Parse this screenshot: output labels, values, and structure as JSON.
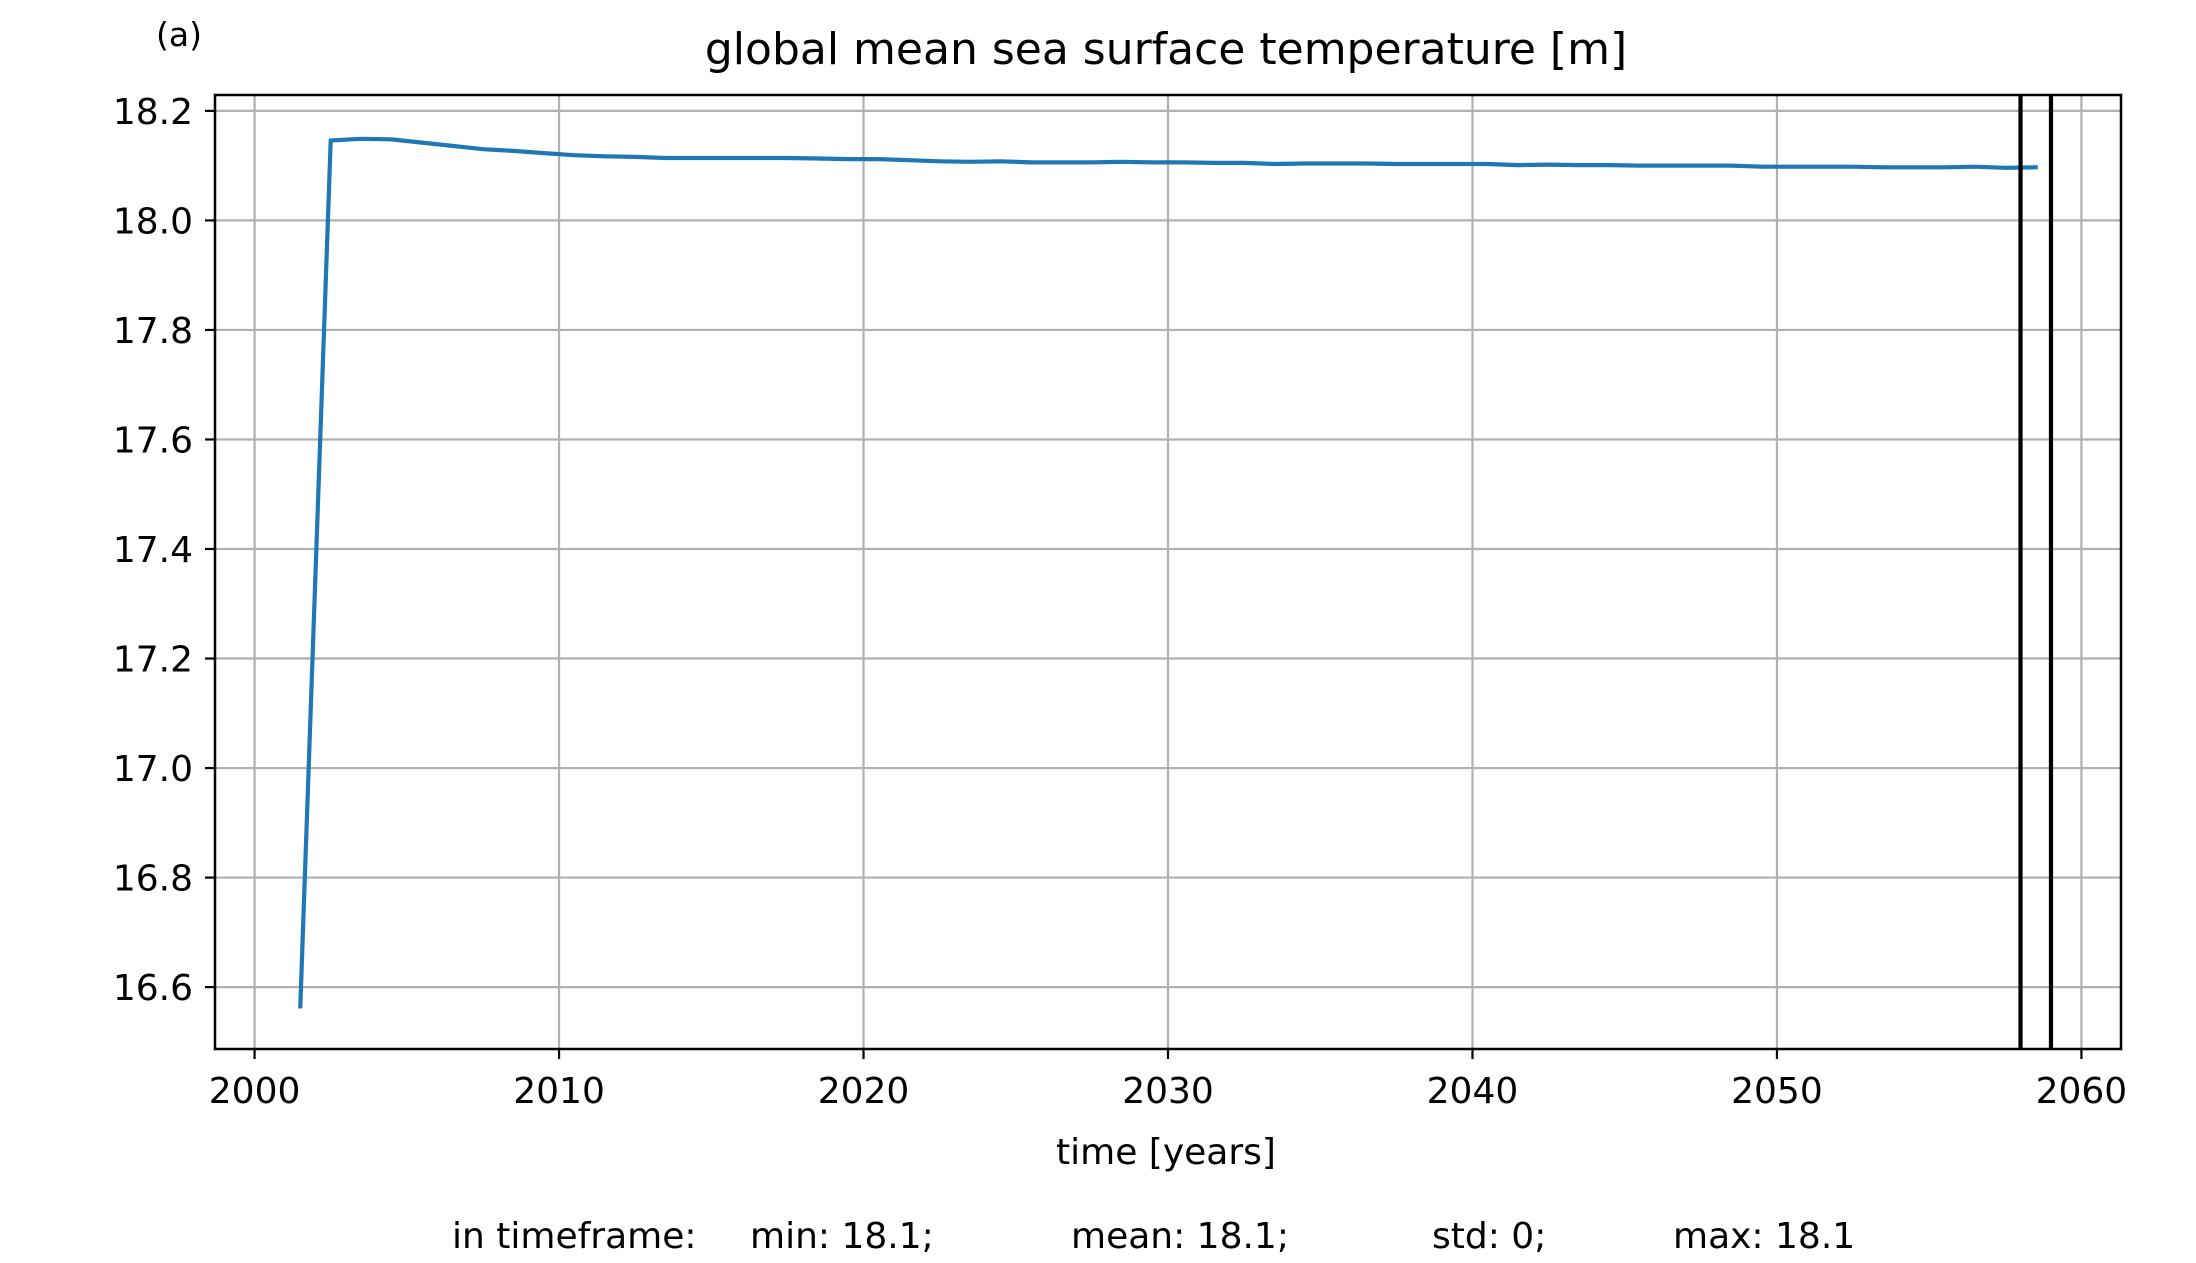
{
  "panel_label": "(a)",
  "chart_data": {
    "type": "line",
    "title": "global mean sea surface temperature [m]",
    "xlabel": "time [years]",
    "ylabel": "",
    "xlim": [
      1998.7,
      2061.3
    ],
    "ylim": [
      16.487,
      18.229
    ],
    "xticks": [
      2000,
      2010,
      2020,
      2030,
      2040,
      2050,
      2060
    ],
    "yticks": [
      16.6,
      16.8,
      17.0,
      17.2,
      17.4,
      17.6,
      17.8,
      18.0,
      18.2
    ],
    "ytick_labels": [
      "16.6",
      "16.8",
      "17.0",
      "17.2",
      "17.4",
      "17.6",
      "17.8",
      "18.0",
      "18.2"
    ],
    "grid": true,
    "series_color": "#1f77b4",
    "series": [
      {
        "x": [
          2001.5,
          2002.5,
          2003.5,
          2004.5,
          2005.5,
          2006.5,
          2007.5,
          2008.5,
          2009.5,
          2010.5,
          2011.5,
          2012.5,
          2013.5,
          2014.5,
          2015.5,
          2016.5,
          2017.5,
          2018.5,
          2019.5,
          2020.5,
          2021.5,
          2022.5,
          2023.5,
          2024.5,
          2025.5,
          2026.5,
          2027.5,
          2028.5,
          2029.5,
          2030.5,
          2031.5,
          2032.5,
          2033.5,
          2034.5,
          2035.5,
          2036.5,
          2037.5,
          2038.5,
          2039.5,
          2040.5,
          2041.5,
          2042.5,
          2043.5,
          2044.5,
          2045.5,
          2046.5,
          2047.5,
          2048.5,
          2049.5,
          2050.5,
          2051.5,
          2052.5,
          2053.5,
          2054.5,
          2055.5,
          2056.5,
          2057.5,
          2058.5
        ],
        "values": [
          16.565,
          18.146,
          18.149,
          18.148,
          18.142,
          18.136,
          18.13,
          18.127,
          18.123,
          18.119,
          18.117,
          18.116,
          18.114,
          18.114,
          18.114,
          18.114,
          18.114,
          18.113,
          18.112,
          18.112,
          18.11,
          18.108,
          18.107,
          18.108,
          18.106,
          18.106,
          18.106,
          18.107,
          18.106,
          18.106,
          18.105,
          18.105,
          18.103,
          18.104,
          18.104,
          18.104,
          18.103,
          18.103,
          18.103,
          18.103,
          18.101,
          18.102,
          18.101,
          18.101,
          18.1,
          18.1,
          18.1,
          18.1,
          18.098,
          18.098,
          18.098,
          18.098,
          18.097,
          18.097,
          18.097,
          18.098,
          18.096,
          18.097
        ]
      }
    ],
    "vlines": [
      2058,
      2059
    ],
    "vline_color": "#000000"
  },
  "stats": {
    "prefix": "in timeframe:",
    "min": "min: 18.1;",
    "mean": "mean: 18.1;",
    "std": "std: 0;",
    "max": "max: 18.1"
  }
}
